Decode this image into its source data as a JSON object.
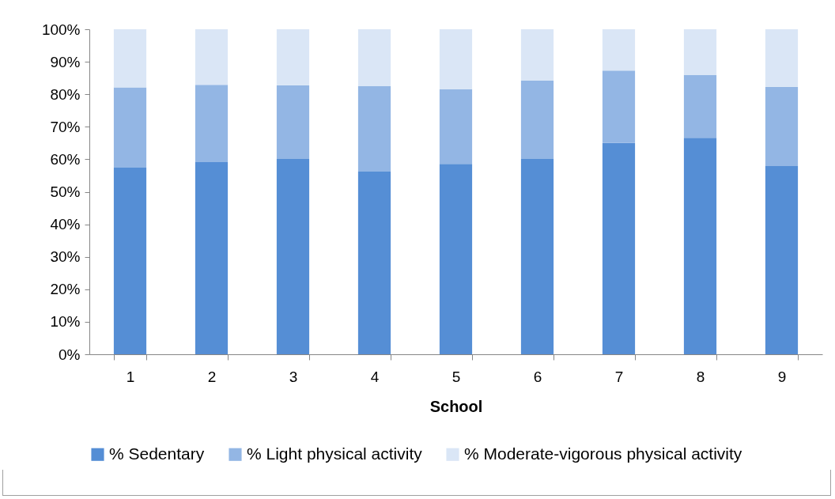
{
  "chart_data": {
    "type": "bar",
    "stacked": true,
    "xlabel": "School",
    "legend": "bottom",
    "categories": [
      "1",
      "2",
      "3",
      "4",
      "5",
      "6",
      "7",
      "8",
      "9"
    ],
    "series": [
      {
        "name": "% Sedentary",
        "color": "#558ed5",
        "values": [
          57.4,
          59.1,
          60.1,
          56.2,
          58.6,
          60.1,
          65.0,
          66.6,
          57.9
        ]
      },
      {
        "name": "% Light physical activity",
        "color": "#93b6e4",
        "values": [
          24.7,
          23.8,
          22.7,
          26.3,
          22.9,
          24.1,
          22.3,
          19.3,
          24.4
        ]
      },
      {
        "name": "% Moderate-vigorous physical activity",
        "color": "#dae6f6",
        "values": [
          17.9,
          17.1,
          17.2,
          17.5,
          18.5,
          15.8,
          12.7,
          14.1,
          17.7
        ]
      }
    ],
    "ylim": [
      0,
      100
    ],
    "yticks": [
      {
        "value": 0,
        "label": "0%"
      },
      {
        "value": 10,
        "label": "10%"
      },
      {
        "value": 20,
        "label": "20%"
      },
      {
        "value": 30,
        "label": "30%"
      },
      {
        "value": 40,
        "label": "40%"
      },
      {
        "value": 50,
        "label": "50%"
      },
      {
        "value": 60,
        "label": "60%"
      },
      {
        "value": 70,
        "label": "70%"
      },
      {
        "value": 80,
        "label": "80%"
      },
      {
        "value": 90,
        "label": "90%"
      },
      {
        "value": 100,
        "label": "100%"
      }
    ]
  }
}
